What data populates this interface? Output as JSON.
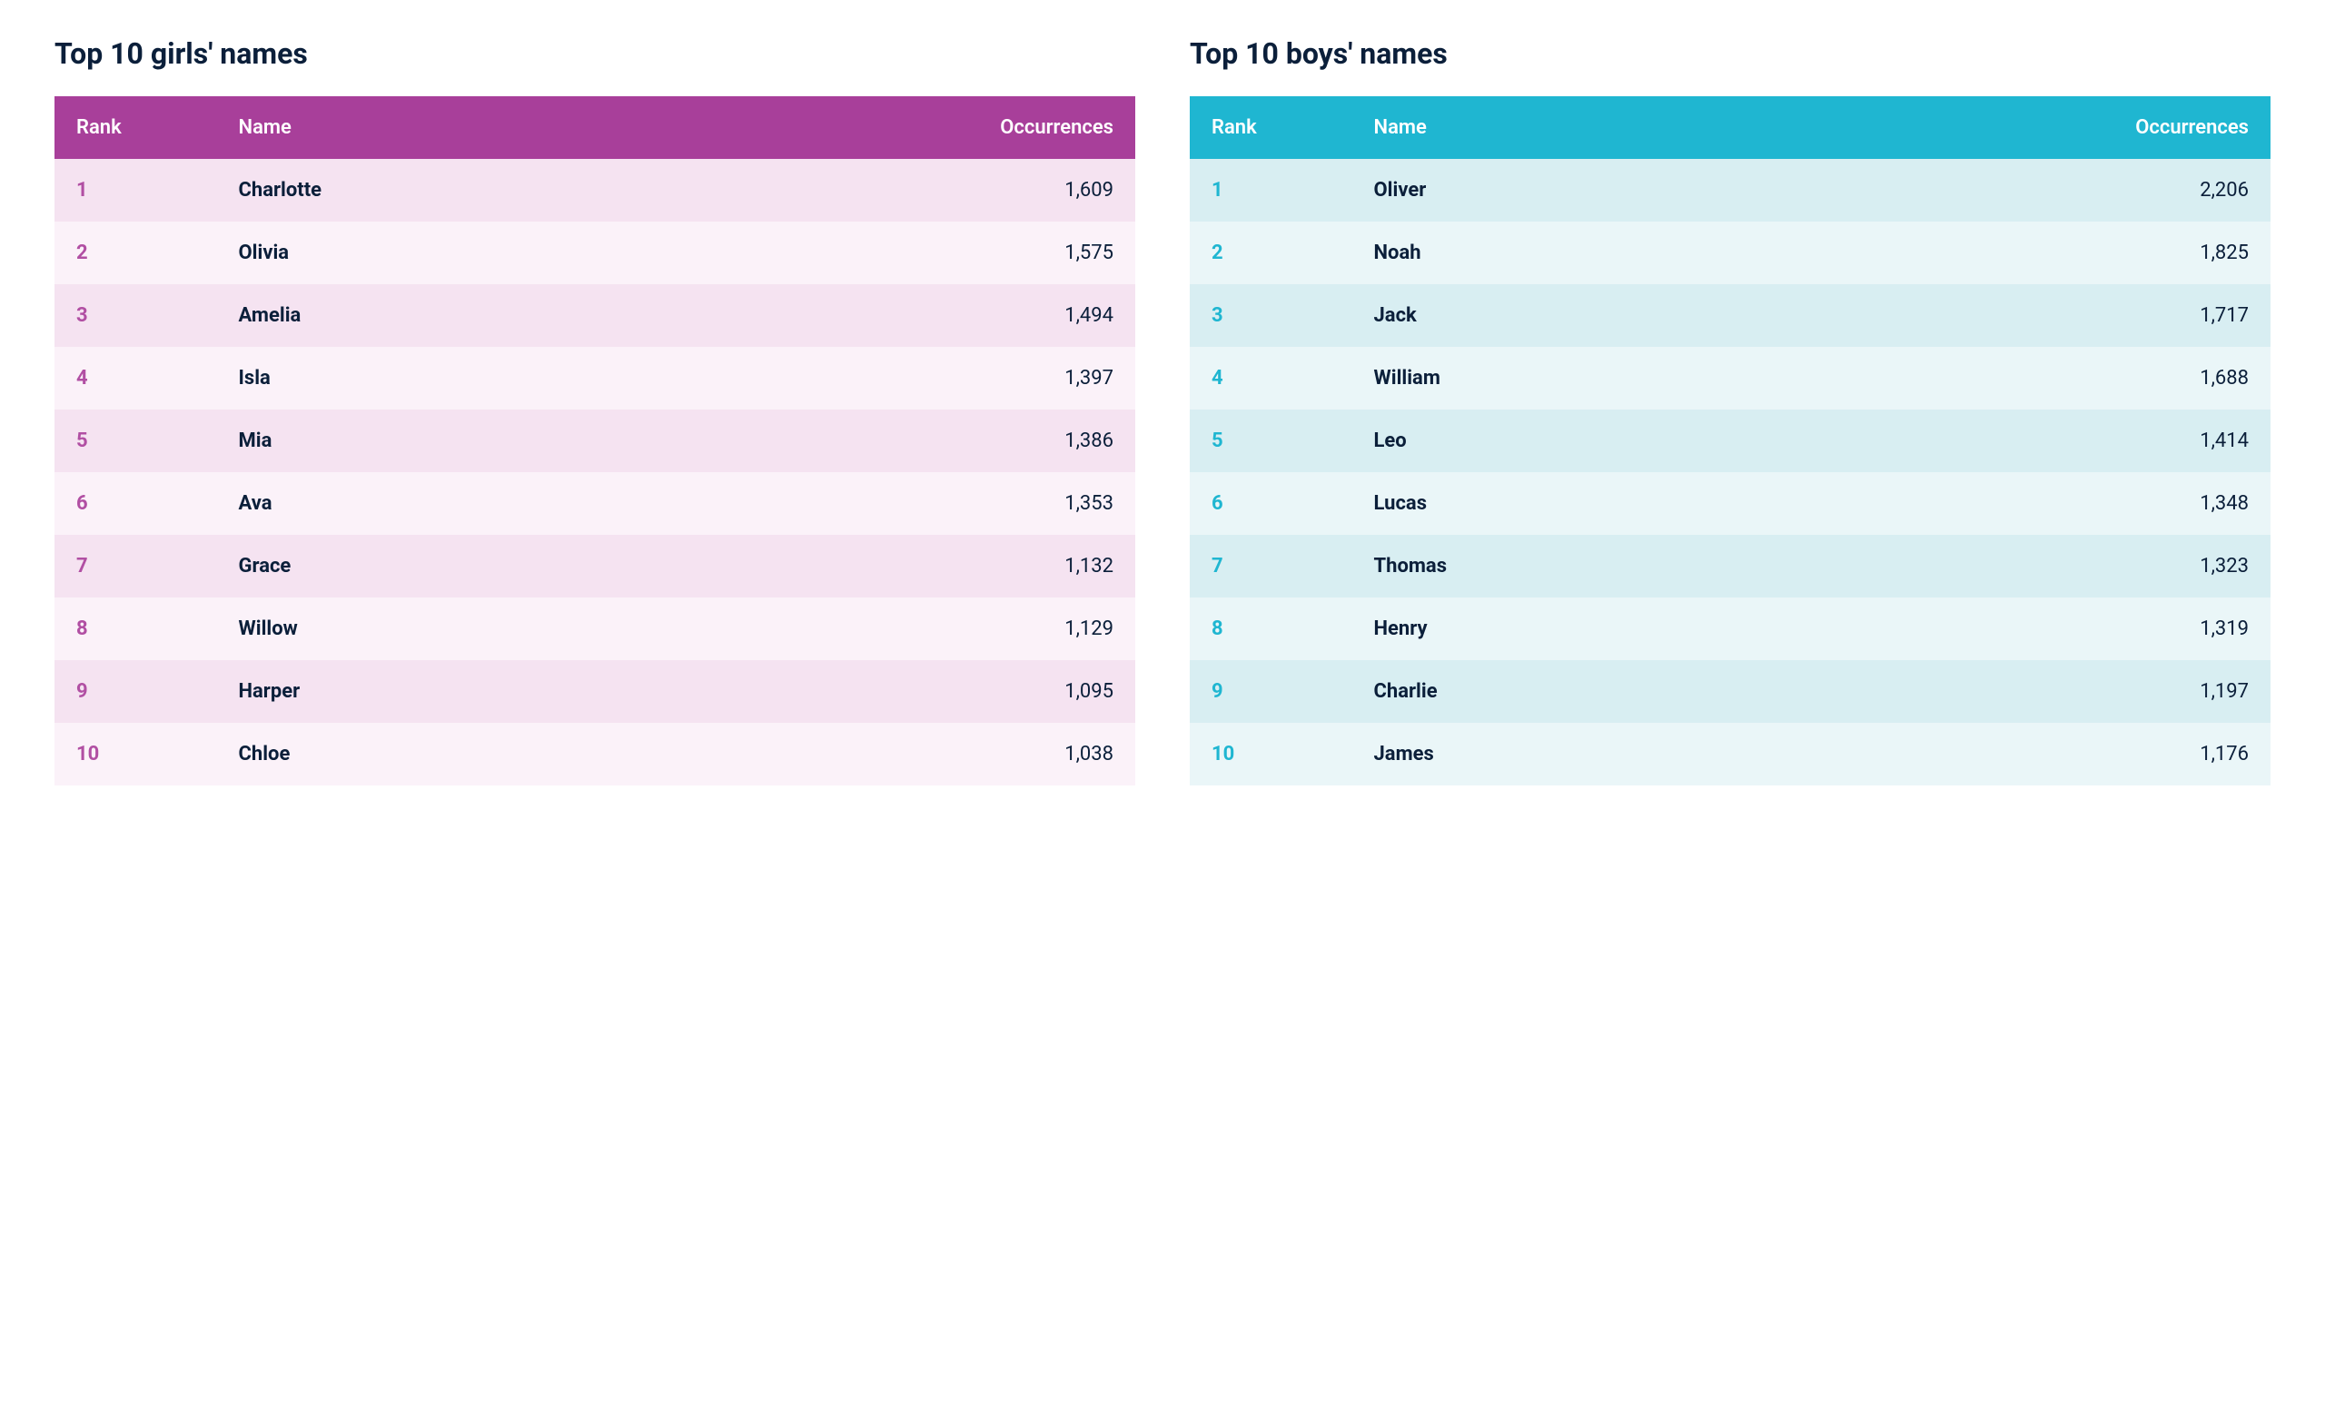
{
  "layout": {
    "background_color": "#ffffff",
    "title_color": "#0b1f3a",
    "title_fontsize": 32,
    "header_fontsize": 22,
    "cell_fontsize": 22
  },
  "girls": {
    "title": "Top 10 girls' names",
    "header_bg": "#a83f9a",
    "header_text": "#ffffff",
    "row_bg_odd": "#f5e3f1",
    "row_bg_even": "#fbf2f9",
    "rank_color": "#b14fa3",
    "name_color": "#0b1f3a",
    "occ_color": "#0b1f3a",
    "columns": [
      "Rank",
      "Name",
      "Occurrences"
    ],
    "rows": [
      {
        "rank": "1",
        "name": "Charlotte",
        "occ": "1,609"
      },
      {
        "rank": "2",
        "name": "Olivia",
        "occ": "1,575"
      },
      {
        "rank": "3",
        "name": "Amelia",
        "occ": "1,494"
      },
      {
        "rank": "4",
        "name": "Isla",
        "occ": "1,397"
      },
      {
        "rank": "5",
        "name": "Mia",
        "occ": "1,386"
      },
      {
        "rank": "6",
        "name": "Ava",
        "occ": "1,353"
      },
      {
        "rank": "7",
        "name": "Grace",
        "occ": "1,132"
      },
      {
        "rank": "8",
        "name": "Willow",
        "occ": "1,129"
      },
      {
        "rank": "9",
        "name": "Harper",
        "occ": "1,095"
      },
      {
        "rank": "10",
        "name": "Chloe",
        "occ": "1,038"
      }
    ]
  },
  "boys": {
    "title": "Top 10 boys' names",
    "header_bg": "#1fb6d1",
    "header_text": "#ffffff",
    "row_bg_odd": "#d8eef2",
    "row_bg_even": "#eaf6f8",
    "rank_color": "#1fb6d1",
    "name_color": "#0b1f3a",
    "occ_color": "#0b1f3a",
    "columns": [
      "Rank",
      "Name",
      "Occurrences"
    ],
    "rows": [
      {
        "rank": "1",
        "name": "Oliver",
        "occ": "2,206"
      },
      {
        "rank": "2",
        "name": "Noah",
        "occ": "1,825"
      },
      {
        "rank": "3",
        "name": "Jack",
        "occ": "1,717"
      },
      {
        "rank": "4",
        "name": "William",
        "occ": "1,688"
      },
      {
        "rank": "5",
        "name": "Leo",
        "occ": "1,414"
      },
      {
        "rank": "6",
        "name": "Lucas",
        "occ": "1,348"
      },
      {
        "rank": "7",
        "name": "Thomas",
        "occ": "1,323"
      },
      {
        "rank": "8",
        "name": "Henry",
        "occ": "1,319"
      },
      {
        "rank": "9",
        "name": "Charlie",
        "occ": "1,197"
      },
      {
        "rank": "10",
        "name": "James",
        "occ": "1,176"
      }
    ]
  }
}
